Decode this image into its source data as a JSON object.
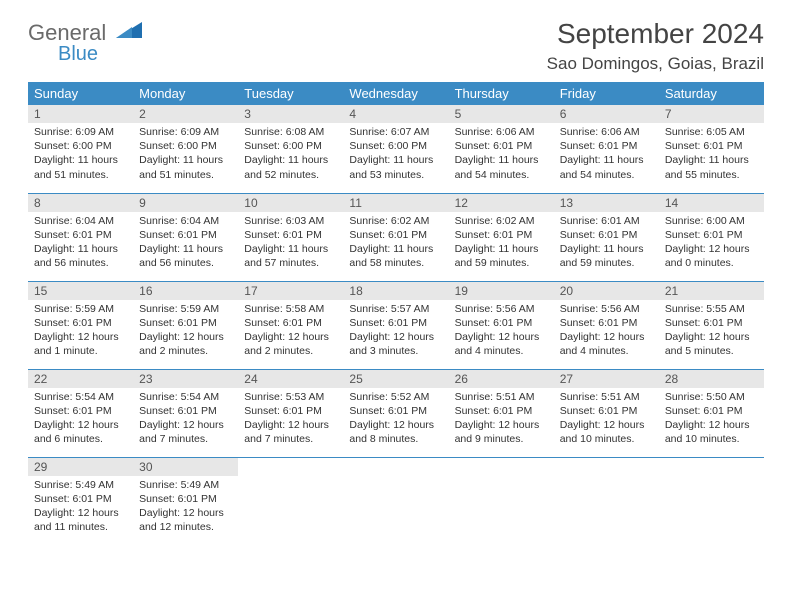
{
  "logo": {
    "word1": "General",
    "word2": "Blue",
    "text_color": "#6a6a6a",
    "accent_color": "#3b8bc4"
  },
  "title": "September 2024",
  "subtitle": "Sao Domingos, Goias, Brazil",
  "header_bg": "#3b8bc4",
  "daynum_bg": "#e7e7e7",
  "border_color": "#3b8bc4",
  "weekdays": [
    "Sunday",
    "Monday",
    "Tuesday",
    "Wednesday",
    "Thursday",
    "Friday",
    "Saturday"
  ],
  "weeks": [
    [
      {
        "n": "1",
        "sr": "Sunrise: 6:09 AM",
        "ss": "Sunset: 6:00 PM",
        "dl": "Daylight: 11 hours and 51 minutes."
      },
      {
        "n": "2",
        "sr": "Sunrise: 6:09 AM",
        "ss": "Sunset: 6:00 PM",
        "dl": "Daylight: 11 hours and 51 minutes."
      },
      {
        "n": "3",
        "sr": "Sunrise: 6:08 AM",
        "ss": "Sunset: 6:00 PM",
        "dl": "Daylight: 11 hours and 52 minutes."
      },
      {
        "n": "4",
        "sr": "Sunrise: 6:07 AM",
        "ss": "Sunset: 6:00 PM",
        "dl": "Daylight: 11 hours and 53 minutes."
      },
      {
        "n": "5",
        "sr": "Sunrise: 6:06 AM",
        "ss": "Sunset: 6:01 PM",
        "dl": "Daylight: 11 hours and 54 minutes."
      },
      {
        "n": "6",
        "sr": "Sunrise: 6:06 AM",
        "ss": "Sunset: 6:01 PM",
        "dl": "Daylight: 11 hours and 54 minutes."
      },
      {
        "n": "7",
        "sr": "Sunrise: 6:05 AM",
        "ss": "Sunset: 6:01 PM",
        "dl": "Daylight: 11 hours and 55 minutes."
      }
    ],
    [
      {
        "n": "8",
        "sr": "Sunrise: 6:04 AM",
        "ss": "Sunset: 6:01 PM",
        "dl": "Daylight: 11 hours and 56 minutes."
      },
      {
        "n": "9",
        "sr": "Sunrise: 6:04 AM",
        "ss": "Sunset: 6:01 PM",
        "dl": "Daylight: 11 hours and 56 minutes."
      },
      {
        "n": "10",
        "sr": "Sunrise: 6:03 AM",
        "ss": "Sunset: 6:01 PM",
        "dl": "Daylight: 11 hours and 57 minutes."
      },
      {
        "n": "11",
        "sr": "Sunrise: 6:02 AM",
        "ss": "Sunset: 6:01 PM",
        "dl": "Daylight: 11 hours and 58 minutes."
      },
      {
        "n": "12",
        "sr": "Sunrise: 6:02 AM",
        "ss": "Sunset: 6:01 PM",
        "dl": "Daylight: 11 hours and 59 minutes."
      },
      {
        "n": "13",
        "sr": "Sunrise: 6:01 AM",
        "ss": "Sunset: 6:01 PM",
        "dl": "Daylight: 11 hours and 59 minutes."
      },
      {
        "n": "14",
        "sr": "Sunrise: 6:00 AM",
        "ss": "Sunset: 6:01 PM",
        "dl": "Daylight: 12 hours and 0 minutes."
      }
    ],
    [
      {
        "n": "15",
        "sr": "Sunrise: 5:59 AM",
        "ss": "Sunset: 6:01 PM",
        "dl": "Daylight: 12 hours and 1 minute."
      },
      {
        "n": "16",
        "sr": "Sunrise: 5:59 AM",
        "ss": "Sunset: 6:01 PM",
        "dl": "Daylight: 12 hours and 2 minutes."
      },
      {
        "n": "17",
        "sr": "Sunrise: 5:58 AM",
        "ss": "Sunset: 6:01 PM",
        "dl": "Daylight: 12 hours and 2 minutes."
      },
      {
        "n": "18",
        "sr": "Sunrise: 5:57 AM",
        "ss": "Sunset: 6:01 PM",
        "dl": "Daylight: 12 hours and 3 minutes."
      },
      {
        "n": "19",
        "sr": "Sunrise: 5:56 AM",
        "ss": "Sunset: 6:01 PM",
        "dl": "Daylight: 12 hours and 4 minutes."
      },
      {
        "n": "20",
        "sr": "Sunrise: 5:56 AM",
        "ss": "Sunset: 6:01 PM",
        "dl": "Daylight: 12 hours and 4 minutes."
      },
      {
        "n": "21",
        "sr": "Sunrise: 5:55 AM",
        "ss": "Sunset: 6:01 PM",
        "dl": "Daylight: 12 hours and 5 minutes."
      }
    ],
    [
      {
        "n": "22",
        "sr": "Sunrise: 5:54 AM",
        "ss": "Sunset: 6:01 PM",
        "dl": "Daylight: 12 hours and 6 minutes."
      },
      {
        "n": "23",
        "sr": "Sunrise: 5:54 AM",
        "ss": "Sunset: 6:01 PM",
        "dl": "Daylight: 12 hours and 7 minutes."
      },
      {
        "n": "24",
        "sr": "Sunrise: 5:53 AM",
        "ss": "Sunset: 6:01 PM",
        "dl": "Daylight: 12 hours and 7 minutes."
      },
      {
        "n": "25",
        "sr": "Sunrise: 5:52 AM",
        "ss": "Sunset: 6:01 PM",
        "dl": "Daylight: 12 hours and 8 minutes."
      },
      {
        "n": "26",
        "sr": "Sunrise: 5:51 AM",
        "ss": "Sunset: 6:01 PM",
        "dl": "Daylight: 12 hours and 9 minutes."
      },
      {
        "n": "27",
        "sr": "Sunrise: 5:51 AM",
        "ss": "Sunset: 6:01 PM",
        "dl": "Daylight: 12 hours and 10 minutes."
      },
      {
        "n": "28",
        "sr": "Sunrise: 5:50 AM",
        "ss": "Sunset: 6:01 PM",
        "dl": "Daylight: 12 hours and 10 minutes."
      }
    ],
    [
      {
        "n": "29",
        "sr": "Sunrise: 5:49 AM",
        "ss": "Sunset: 6:01 PM",
        "dl": "Daylight: 12 hours and 11 minutes."
      },
      {
        "n": "30",
        "sr": "Sunrise: 5:49 AM",
        "ss": "Sunset: 6:01 PM",
        "dl": "Daylight: 12 hours and 12 minutes."
      },
      null,
      null,
      null,
      null,
      null
    ]
  ]
}
